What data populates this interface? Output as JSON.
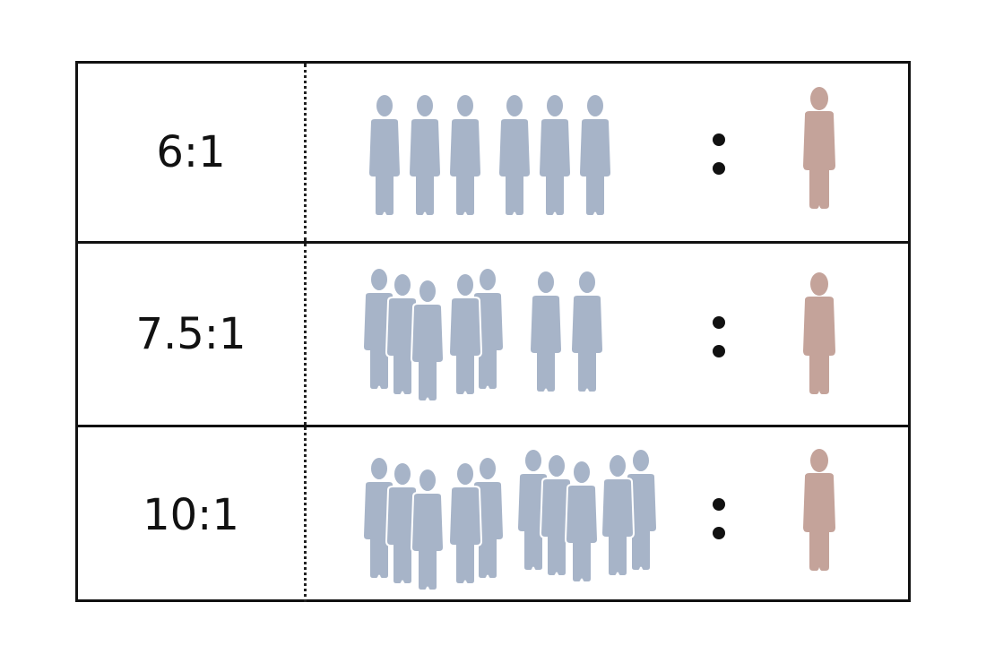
{
  "rows": [
    {
      "label": "6:1",
      "group_a": 6,
      "group_b": 1
    },
    {
      "label": "7.5:1",
      "group_a": 7.5,
      "group_b": 1
    },
    {
      "label": "10:1",
      "group_a": 10,
      "group_b": 1
    }
  ],
  "separator": ":",
  "colors": {
    "group_a_figure": "#a7b4c8",
    "group_b_figure": "#c4a39a",
    "border": "#111111",
    "text": "#111111"
  },
  "icons": {
    "group_a": "person-icon",
    "group_b": "person-icon"
  }
}
